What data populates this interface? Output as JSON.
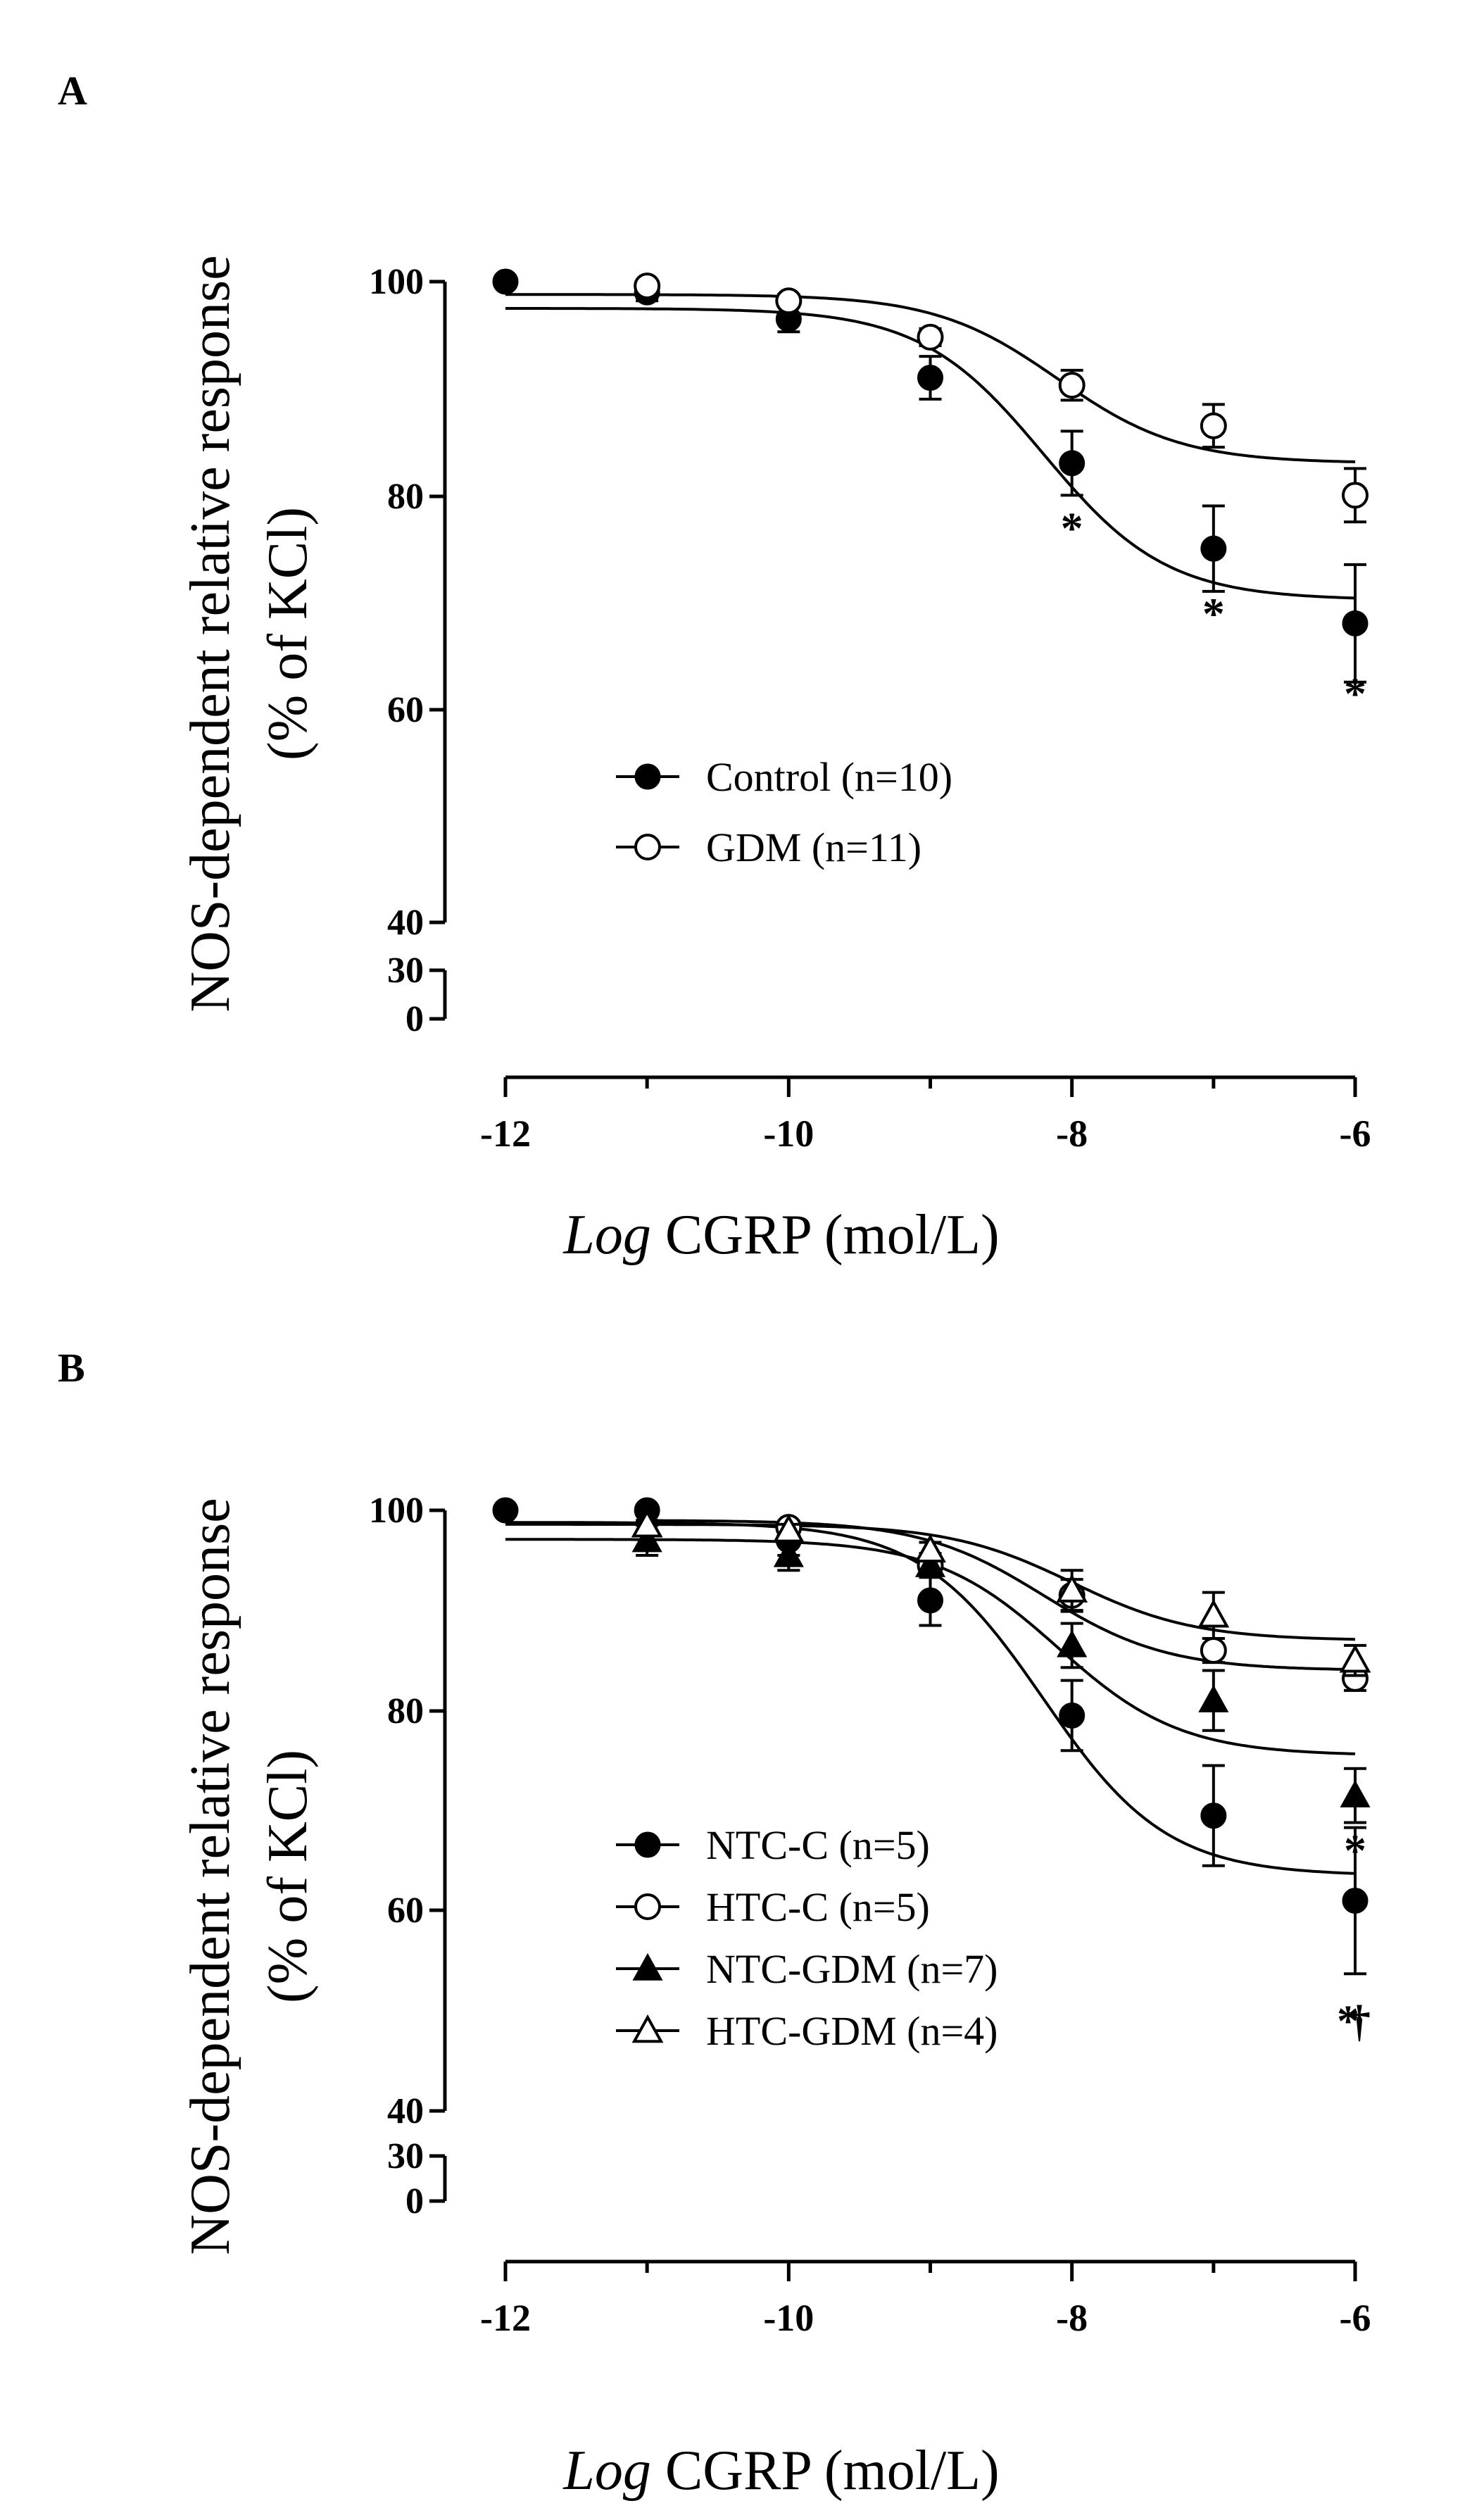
{
  "chart_data": [
    {
      "panel_label": "A",
      "type": "line",
      "xlabel_italic": "Log",
      "xlabel_rest": " CGRP (mol/L)",
      "ylabel_line1": "NOS-dependent relative response",
      "ylabel_line2": "(% of KCl)",
      "xlim": [
        -12,
        -6
      ],
      "x_ticks": [
        "-12",
        "-10",
        "-8",
        "-6"
      ],
      "y_ticks": [
        "0",
        "30",
        "40",
        "60",
        "80",
        "100"
      ],
      "y_axis_break": [
        30,
        40
      ],
      "grid": false,
      "legend_position": "lower-left inside",
      "series": [
        {
          "name": "Control (n=10)",
          "marker": "filled-circle",
          "color": "#000000",
          "x": [
            -12,
            -11,
            -10,
            -9,
            -8,
            -7,
            -6
          ],
          "y": [
            100,
            99,
            96.5,
            91,
            83,
            75,
            68
          ],
          "err": [
            0.5,
            0.8,
            1.2,
            2,
            3,
            4,
            5.5
          ],
          "fit": {
            "top": 97.5,
            "bottom": 70.2,
            "logEC50": -8.2,
            "hill": 1
          }
        },
        {
          "name": "GDM (n=11)",
          "marker": "open-circle",
          "color": "#000000",
          "x": [
            -11,
            -10,
            -9,
            -8,
            -7,
            -6
          ],
          "y": [
            99.6,
            98.2,
            94.8,
            90.3,
            86.5,
            80
          ],
          "err": [
            0.5,
            0.6,
            0.8,
            1.4,
            2,
            2.5
          ],
          "fit": {
            "top": 98.8,
            "bottom": 83,
            "logEC50": -8.1,
            "hill": 1
          }
        }
      ],
      "annotations": [
        {
          "text": "*",
          "x": -8,
          "y": 75.5
        },
        {
          "text": "*",
          "x": -7,
          "y": 67.5
        },
        {
          "text": "*",
          "x": -6,
          "y": 60
        }
      ]
    },
    {
      "panel_label": "B",
      "type": "line",
      "xlabel_italic": "Log",
      "xlabel_rest": " CGRP (mol/L)",
      "ylabel_line1": "NOS-dependent relative response",
      "ylabel_line2": "(% of KCl)",
      "xlim": [
        -12,
        -6
      ],
      "x_ticks": [
        "-12",
        "-10",
        "-8",
        "-6"
      ],
      "y_ticks": [
        "0",
        "30",
        "40",
        "60",
        "80",
        "100"
      ],
      "y_axis_break": [
        30,
        40
      ],
      "grid": false,
      "legend_position": "lower-left inside",
      "series": [
        {
          "name": "NTC-C (n=5)",
          "marker": "filled-circle",
          "color": "#000000",
          "x": [
            -12,
            -11,
            -10,
            -9,
            -8,
            -7,
            -6
          ],
          "y": [
            100,
            100,
            97,
            91,
            79.5,
            69.5,
            61
          ],
          "err": [
            0.5,
            0.5,
            1.5,
            2.5,
            3.5,
            5,
            7.3
          ],
          "fit": {
            "top": 98.8,
            "bottom": 63.5,
            "logEC50": -8.2,
            "hill": 1
          }
        },
        {
          "name": "HTC-C (n=5)",
          "marker": "open-circle",
          "color": "#000000",
          "x": [
            -10,
            -9,
            -8,
            -7,
            -6
          ],
          "y": [
            98.3,
            94.5,
            91.5,
            86,
            83.2
          ],
          "err": [
            0.6,
            0.8,
            1.6,
            1.2,
            1.2
          ],
          "fit": {
            "top": 99,
            "bottom": 84,
            "logEC50": -8.2,
            "hill": 1
          }
        },
        {
          "name": "NTC-GDM (n=7)",
          "marker": "filled-triangle",
          "color": "#000000",
          "x": [
            -11,
            -10,
            -9,
            -8,
            -7,
            -6
          ],
          "y": [
            97,
            95.5,
            94.5,
            86.5,
            81,
            71.5
          ],
          "err": [
            1.5,
            1.5,
            1.2,
            2.2,
            3,
            2.7
          ],
          "fit": {
            "top": 97.1,
            "bottom": 75.5,
            "logEC50": -8.1,
            "hill": 1
          }
        },
        {
          "name": "HTC-GDM (n=4)",
          "marker": "open-triangle",
          "color": "#000000",
          "x": [
            -11,
            -10,
            -9,
            -8,
            -7,
            -6
          ],
          "y": [
            98.5,
            98,
            96,
            92,
            89.5,
            85
          ],
          "err": [
            0.5,
            0.6,
            0.8,
            2,
            2.3,
            1.5
          ],
          "fit": {
            "top": 98.6,
            "bottom": 87,
            "logEC50": -8.0,
            "hill": 1
          }
        }
      ],
      "annotations": [
        {
          "text": "*",
          "x": -6,
          "y": 64.5
        },
        {
          "text": "*",
          "x": -6.05,
          "y": 47.5
        },
        {
          "text": "†",
          "x": -5.97,
          "y": 47.5
        }
      ]
    }
  ]
}
